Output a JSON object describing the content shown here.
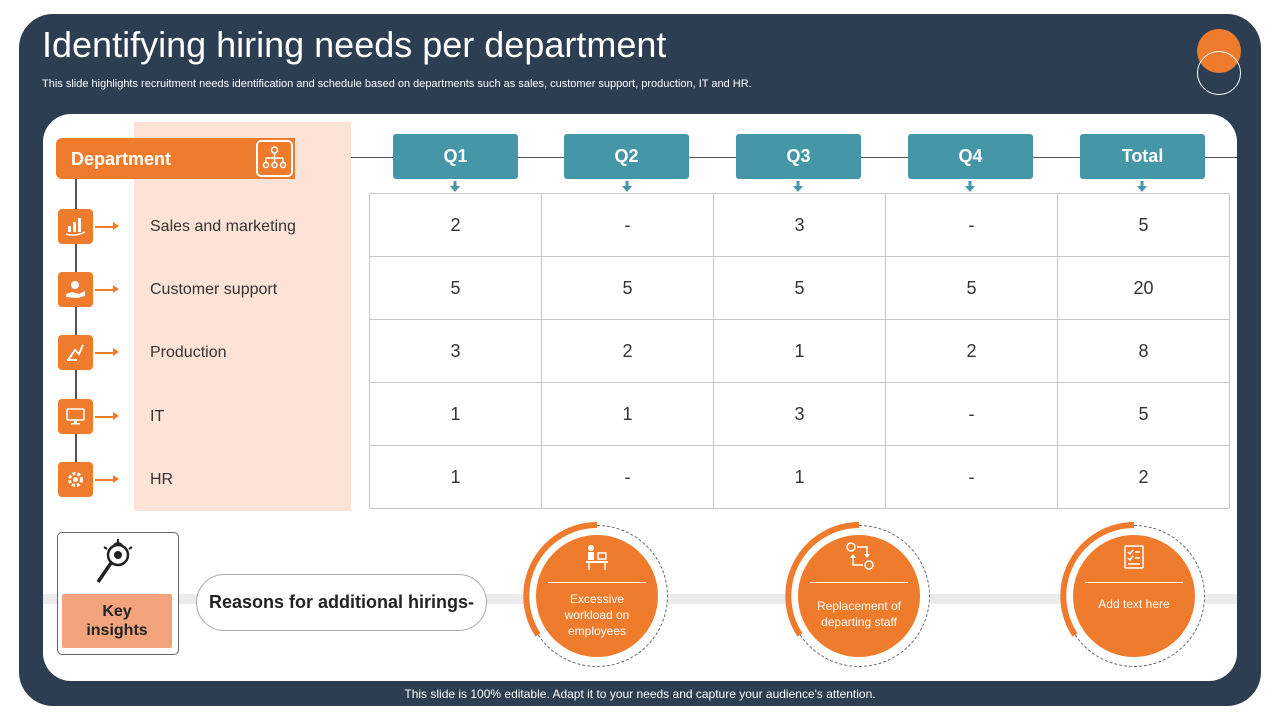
{
  "title": "Identifying hiring needs per department",
  "subtitle": "This slide highlights recruitment needs identification and schedule based on departments such as sales, customer support, production, IT and HR.",
  "department_header": "Department",
  "departments": [
    {
      "label": "Sales and marketing",
      "icon": "sales-hand-icon"
    },
    {
      "label": "Customer support",
      "icon": "support-hand-icon"
    },
    {
      "label": "Production",
      "icon": "production-tool-icon"
    },
    {
      "label": "IT",
      "icon": "monitor-icon"
    },
    {
      "label": "HR",
      "icon": "gear-people-icon"
    }
  ],
  "quarters": [
    "Q1",
    "Q2",
    "Q3",
    "Q4",
    "Total"
  ],
  "table": [
    [
      "2",
      "-",
      "3",
      "-",
      "5"
    ],
    [
      "5",
      "5",
      "5",
      "5",
      "20"
    ],
    [
      "3",
      "2",
      "1",
      "2",
      "8"
    ],
    [
      "1",
      "1",
      "3",
      "-",
      "5"
    ],
    [
      "1",
      "-",
      "1",
      "-",
      "2"
    ]
  ],
  "key_insights": "Key insights",
  "reasons_label": "Reasons for additional hirings-",
  "reasons": [
    {
      "text": "Excessive workload on employees",
      "icon": "worker-desk-icon"
    },
    {
      "text": "Replacement of departing staff",
      "icon": "exchange-people-icon"
    },
    {
      "text": "Add text here",
      "icon": "checklist-icon"
    }
  ],
  "footer": "This slide is 100% editable. Adapt it to your needs and capture your audience's attention.",
  "colors": {
    "navy": "#2d3e52",
    "orange": "#ef7b2d",
    "teal": "#4596a6",
    "peach": "#fde3d6"
  }
}
